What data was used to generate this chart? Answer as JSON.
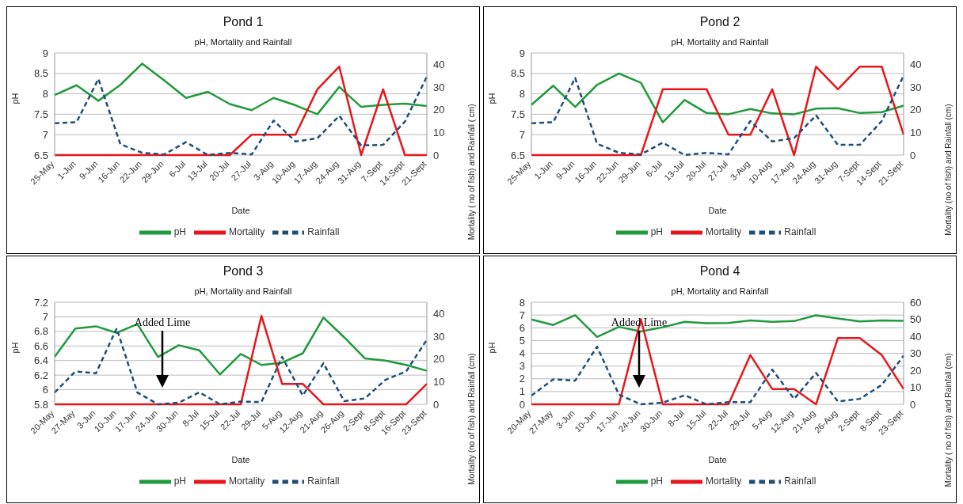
{
  "chart_data": [
    {
      "type": "line",
      "title": "Pond 1",
      "subtitle": "pH, Mortality and Rainfall",
      "xlabel": "Date",
      "ylabel": "pH",
      "y2label": "Mortality ( no of fish) and Rainfall ( cm)",
      "categories": [
        "25-May",
        "1-Jun",
        "9-Jun",
        "16-Jun",
        "22-Jun",
        "29-Jun",
        "6-Jul",
        "13-Jul",
        "20-Jul",
        "27-Jul",
        "3-Aug",
        "10-Aug",
        "17-Aug",
        "24-Aug",
        "31-Aug",
        "7-Sept",
        "14-Sept",
        "21-Sept"
      ],
      "series": [
        {
          "name": "pH",
          "color": "#1f9a3c",
          "line_style": "solid",
          "values": [
            7.97,
            8.21,
            7.83,
            8.22,
            8.74,
            8.33,
            7.9,
            8.05,
            7.75,
            7.6,
            7.9,
            7.72,
            7.5,
            8.17,
            7.68,
            7.73,
            7.76,
            7.7
          ]
        },
        {
          "name": "Mortality",
          "color": "#e8161c",
          "axis": "y2",
          "line_style": "solid",
          "values": [
            0,
            0,
            0,
            0,
            0,
            0,
            0,
            0,
            0,
            9,
            9,
            9,
            29,
            39,
            0,
            29,
            0,
            0
          ]
        },
        {
          "name": "Rainfall",
          "color": "#1f4e79",
          "axis": "y2",
          "line_style": "dashed",
          "values": [
            14,
            14.5,
            33.6,
            4.8,
            1,
            0.3,
            5.7,
            0,
            1,
            0.3,
            15.2,
            6,
            7.4,
            17.3,
            4.3,
            4.5,
            14.8,
            34.6
          ]
        }
      ],
      "ylim": [
        6.5,
        9
      ],
      "yticks": [
        6.5,
        7,
        7.5,
        8,
        8.5,
        9
      ],
      "y2lim": [
        0,
        45
      ],
      "y2ticks": [
        0,
        10,
        20,
        30,
        40
      ],
      "grid": "y",
      "legend": "bottom",
      "marker": "none"
    },
    {
      "type": "line",
      "title": "Pond 2",
      "subtitle": "pH, Mortality and Rainfall",
      "xlabel": "Date",
      "ylabel": "pH",
      "y2label": "Mortality (no of fish) and Rainfall (cm)",
      "categories": [
        "25-May",
        "1-Jun",
        "9-Jun",
        "16-Jun",
        "22-Jun",
        "29-Jun",
        "6-Jul",
        "13-Jul",
        "20-Jul",
        "27-Jul",
        "3-Aug",
        "10-Aug",
        "17-Aug",
        "24-Aug",
        "31-Aug",
        "7-Sept",
        "14-Sept",
        "21-Sept"
      ],
      "series": [
        {
          "name": "pH",
          "color": "#1f9a3c",
          "line_style": "solid",
          "values": [
            7.73,
            8.2,
            7.68,
            8.22,
            8.5,
            8.27,
            7.3,
            7.85,
            7.53,
            7.5,
            7.63,
            7.52,
            7.5,
            7.64,
            7.65,
            7.53,
            7.55,
            7.71
          ]
        },
        {
          "name": "Mortality",
          "color": "#e8161c",
          "axis": "y2",
          "line_style": "solid",
          "values": [
            0,
            0,
            0,
            0,
            0,
            0,
            29,
            29,
            29,
            9,
            9,
            29,
            0,
            39,
            29,
            39,
            39,
            9
          ]
        },
        {
          "name": "Rainfall",
          "color": "#1f4e79",
          "axis": "y2",
          "line_style": "dashed",
          "values": [
            14,
            14.5,
            34,
            5,
            1,
            0.3,
            5.5,
            0,
            1,
            0.3,
            15,
            6,
            7.5,
            17.5,
            4.5,
            4.5,
            15,
            35
          ]
        }
      ],
      "ylim": [
        6.5,
        9
      ],
      "yticks": [
        6.5,
        7,
        7.5,
        8,
        8.5,
        9
      ],
      "y2lim": [
        0,
        45
      ],
      "y2ticks": [
        0,
        10,
        20,
        30,
        40
      ],
      "grid": "y",
      "legend": "bottom",
      "marker": "none"
    },
    {
      "type": "line",
      "title": "Pond 3",
      "subtitle": "pH, Mortality and Rainfall",
      "xlabel": "Date",
      "ylabel": "pH",
      "y2label": "Mortality (no of fish) and Rainfall (cm)",
      "categories": [
        "20-May",
        "27-May",
        "3-Jun",
        "10-Jun",
        "17-Jun",
        "24-Jun",
        "30-Jun",
        "8-Jul",
        "15-Jul",
        "22-Jul",
        "29-Jul",
        "5-Aug",
        "12-Aug",
        "21-Aug",
        "26-Aug",
        "2-Sept",
        "8-Sept",
        "16-Sept",
        "23-Sept"
      ],
      "series": [
        {
          "name": "pH",
          "color": "#1f9a3c",
          "line_style": "solid",
          "values": [
            6.45,
            6.84,
            6.87,
            6.78,
            6.9,
            6.45,
            6.61,
            6.54,
            6.21,
            6.49,
            6.34,
            6.37,
            6.5,
            6.99,
            6.72,
            6.43,
            6.4,
            6.34,
            6.26
          ]
        },
        {
          "name": "Mortality",
          "color": "#e8161c",
          "axis": "y2",
          "line_style": "solid",
          "values": [
            0,
            0,
            0,
            0,
            0,
            0,
            0,
            0,
            0,
            0,
            39,
            9,
            9,
            0,
            0,
            0,
            0,
            0,
            9
          ]
        },
        {
          "name": "Rainfall",
          "color": "#1f4e79",
          "axis": "y2",
          "line_style": "dashed",
          "values": [
            5.2,
            14.5,
            13.7,
            33.5,
            5.2,
            0,
            0.7,
            5.3,
            0,
            1.2,
            1,
            20.9,
            3.9,
            18.1,
            1.4,
            2.6,
            10.8,
            14.5,
            28.5
          ]
        }
      ],
      "ylim": [
        5.8,
        7.2
      ],
      "yticks": [
        5.8,
        6,
        6.2,
        6.4,
        6.6,
        6.8,
        7,
        7.2
      ],
      "y2lim": [
        0,
        45
      ],
      "y2ticks": [
        0,
        10,
        20,
        30,
        40
      ],
      "grid": "y",
      "legend": "bottom",
      "marker": "none",
      "annotations": [
        "Added Lime"
      ]
    },
    {
      "type": "line",
      "title": "Pond 4",
      "subtitle": "pH, Mortality and Rainfall",
      "xlabel": "Date",
      "ylabel": "pH",
      "y2label": "Mortality ( no of fish) and Rainfall (cm)",
      "categories": [
        "20-May",
        "27-May",
        "3-Jun",
        "10-Jun",
        "17-Jun",
        "24-Jun",
        "30-Jun",
        "8-Jul",
        "15-Jul",
        "22-Jul",
        "29-Jul",
        "5-Aug",
        "12-Aug",
        "21-Aug",
        "26-Aug",
        "2-Sept",
        "8-Sept",
        "23-Sept"
      ],
      "series": [
        {
          "name": "pH",
          "color": "#1f9a3c",
          "line_style": "solid",
          "values": [
            6.65,
            6.22,
            6.98,
            5.28,
            6.07,
            5.71,
            6.04,
            6.47,
            6.35,
            6.37,
            6.57,
            6.47,
            6.52,
            6.98,
            6.73,
            6.5,
            6.57,
            6.55
          ]
        },
        {
          "name": "Mortality",
          "color": "#e8161c",
          "axis": "y2",
          "line_style": "solid",
          "values": [
            0,
            0,
            0,
            0,
            0,
            50,
            0,
            0,
            0,
            0,
            29,
            9,
            9,
            0,
            39,
            39,
            29,
            9
          ]
        },
        {
          "name": "Rainfall",
          "color": "#1f4e79",
          "axis": "y2",
          "line_style": "dashed",
          "values": [
            5.1,
            14.7,
            13.9,
            33.9,
            5.7,
            0,
            1,
            5.3,
            0,
            1.3,
            1.3,
            20.4,
            3.2,
            18.5,
            1.7,
            3.2,
            11.4,
            28.6
          ]
        }
      ],
      "ylim": [
        0,
        8
      ],
      "yticks": [
        0,
        1,
        2,
        3,
        4,
        5,
        6,
        7,
        8
      ],
      "y2lim": [
        0,
        60
      ],
      "y2ticks": [
        0,
        10,
        20,
        30,
        40,
        50,
        60
      ],
      "grid": "y",
      "legend": "bottom",
      "marker": "none",
      "annotations": [
        "Added Lime"
      ]
    }
  ]
}
